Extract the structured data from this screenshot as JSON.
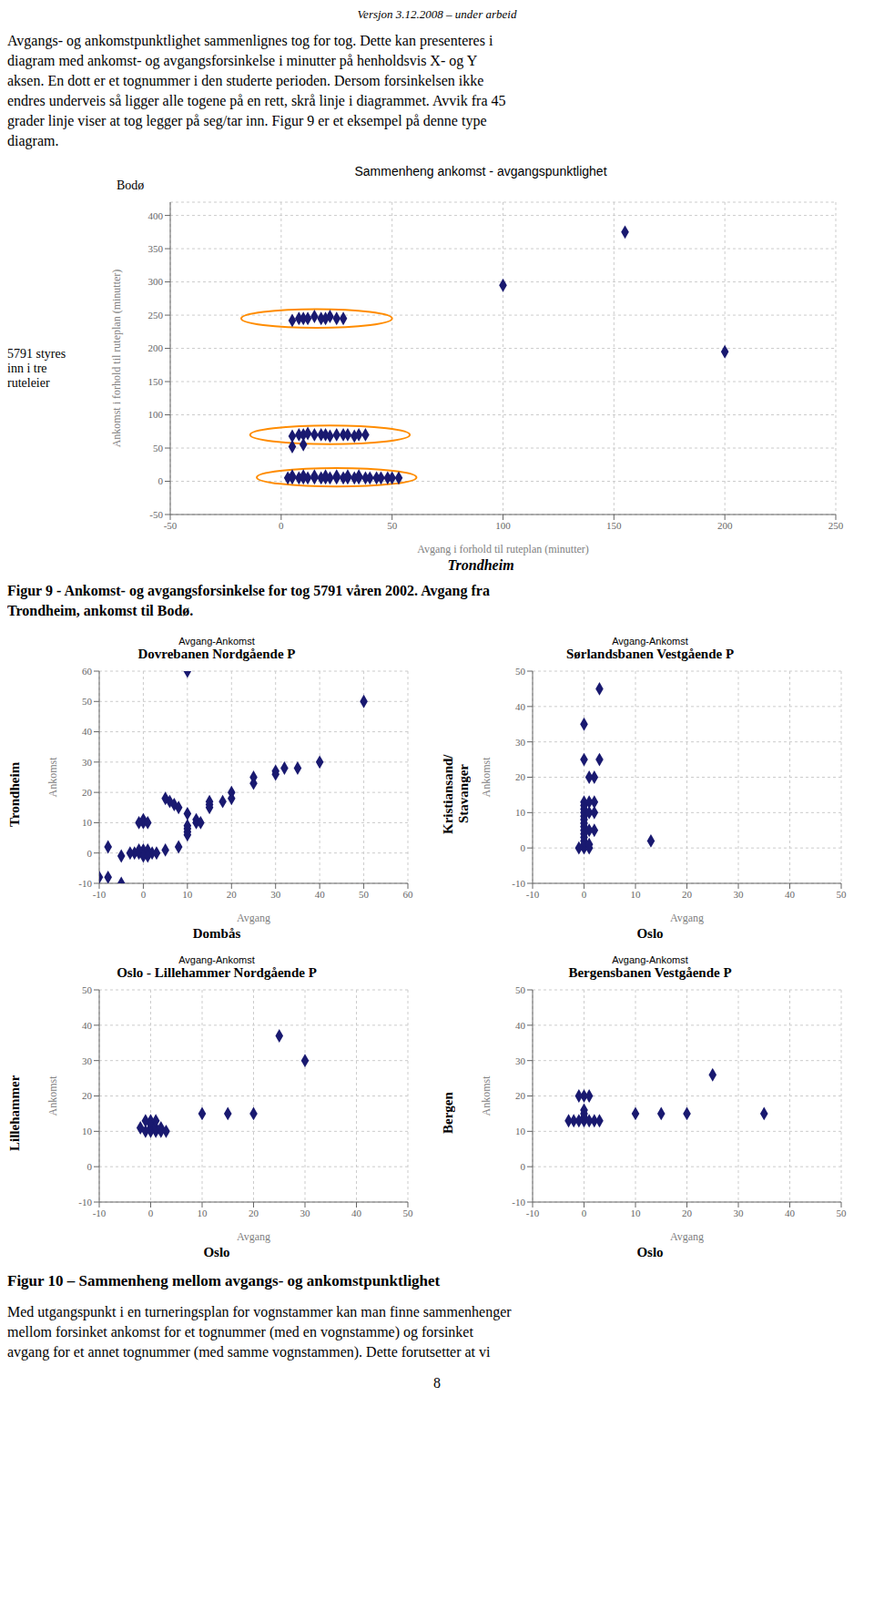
{
  "page": {
    "header": "Versjon 3.12.2008 – under arbeid",
    "body_text_1": [
      "Avgangs- og ankomstpunktlighet sammenlignes tog for tog. Dette kan presenteres i",
      "diagram med ankomst- og avgangsforsinkelse i minutter på henholdsvis X- og Y",
      "aksen. En dott er et tognummer i den studerte perioden. Dersom forsinkelsen ikke",
      "endres underveis så ligger alle togene på en rett, skrå linje i diagrammet. Avvik fra 45",
      "grader linje viser at tog legger på seg/tar inn. Figur 9 er et eksempel på denne type",
      "diagram."
    ],
    "caption_figure_9": "Figur 9 - Ankomst- og avgangsforsinkelse for tog 5791 våren 2002. Avgang fra\nTrondheim, ankomst til Bodø.",
    "caption_figure_10": "Figur 10 – Sammenheng mellom avgangs- og ankomstpunktlighet",
    "body_text_2": [
      "Med utgangspunkt i en turneringsplan for vognstammer kan man finne sammenhenger",
      "mellom forsinket ankomst for et tognummer (med en vognstamme) og forsinket",
      "avgang for et annet tognummer (med samme vognstammen). Dette forutsetter at vi"
    ],
    "page_number": "8"
  },
  "chart_data": [
    {
      "type": "scatter",
      "title": "Sammenheng ankomst - avgangspunktlighet",
      "xlabel": "Avgang i forhold til ruteplan (minutter)",
      "ylabel": "Ankomst i forhold til ruteplan (minutter)",
      "xlabel_city": "Trondheim",
      "ylabel_city": "Bodø",
      "annotations": [
        "5791 styres\ninn i tre\nruteleier"
      ],
      "x": [
        3,
        5,
        8,
        10,
        12,
        15,
        18,
        20,
        22,
        25,
        28,
        30,
        33,
        35,
        38,
        40,
        43,
        45,
        48,
        50,
        53,
        5,
        10,
        15,
        20,
        25,
        30,
        35,
        5,
        8,
        10,
        12,
        15,
        18,
        20,
        22,
        25,
        28,
        30,
        33,
        35,
        38,
        5,
        8,
        10,
        12,
        15,
        18,
        20,
        22,
        25,
        28,
        5,
        10,
        155,
        200,
        100
      ],
      "values": [
        5,
        5,
        5,
        5,
        5,
        5,
        5,
        5,
        5,
        5,
        5,
        5,
        5,
        5,
        5,
        5,
        5,
        5,
        5,
        5,
        5,
        8,
        8,
        8,
        8,
        8,
        8,
        8,
        68,
        70,
        70,
        72,
        70,
        70,
        70,
        68,
        70,
        70,
        70,
        68,
        70,
        70,
        242,
        245,
        245,
        245,
        248,
        245,
        245,
        248,
        245,
        245,
        52,
        55,
        375,
        195,
        295
      ],
      "color": "#191970",
      "marker": "diamond",
      "ellipses": [
        {
          "center": [
            25,
            6
          ],
          "width": 72,
          "height": 28,
          "color": "#FF8C00"
        },
        {
          "center": [
            22,
            70
          ],
          "width": 72,
          "height": 28,
          "color": "#FF8C00"
        },
        {
          "center": [
            16,
            245
          ],
          "width": 68,
          "height": 28,
          "color": "#FF8C00"
        }
      ],
      "xlim": [
        -50,
        250
      ],
      "ylim": [
        -50,
        420
      ],
      "xticks": [
        -50,
        0,
        50,
        100,
        150,
        200,
        250
      ],
      "yticks": [
        -50,
        0,
        50,
        100,
        150,
        200,
        250,
        300,
        350,
        400
      ],
      "grid": true
    },
    {
      "type": "scatter",
      "subtitle": "Avgang-Ankomst",
      "title": "Dovrebanen Nordgående P",
      "xlabel": "Avgang",
      "ylabel": "Ankomst",
      "xlabel_city": "Dombås",
      "ylabel_city": "Trondheim",
      "x": [
        0,
        1,
        -1,
        2,
        -2,
        3,
        -3,
        0,
        1,
        -1,
        0,
        1,
        5,
        -5,
        8,
        -8,
        10,
        10,
        10,
        10,
        12,
        12,
        13,
        15,
        15,
        20,
        20,
        25,
        25,
        30,
        30,
        32,
        35,
        40,
        50,
        10,
        5,
        6,
        7,
        8,
        10,
        15,
        18,
        0,
        0,
        1,
        -1,
        -8,
        -5,
        -10
      ],
      "values": [
        0,
        0,
        0,
        0,
        0,
        0,
        0,
        1,
        1,
        1,
        -1,
        -1,
        1,
        -1,
        2,
        2,
        7,
        8,
        9,
        6,
        10,
        11,
        10,
        16,
        17,
        18,
        20,
        23,
        25,
        27,
        26,
        28,
        28,
        30,
        50,
        60,
        18,
        17,
        16,
        15,
        13,
        15,
        17,
        10,
        11,
        10,
        10,
        -8,
        -10,
        -8
      ],
      "color": "#191970",
      "marker": "diamond",
      "xlim": [
        -10,
        60
      ],
      "ylim": [
        -10,
        60
      ],
      "xticks": [
        -10,
        0,
        10,
        20,
        30,
        40,
        50,
        60
      ],
      "yticks": [
        -10,
        0,
        10,
        20,
        30,
        40,
        50,
        60
      ],
      "grid": true
    },
    {
      "type": "scatter",
      "subtitle": "Avgang-Ankomst",
      "title": "Sørlandsbanen Vestgående P",
      "xlabel": "Avgang",
      "ylabel": "Ankomst",
      "xlabel_city": "Oslo",
      "ylabel_city": "Kristiansand/\nStavanger",
      "x": [
        0,
        0,
        0,
        0,
        0,
        0,
        0,
        0,
        0,
        0,
        0,
        0,
        0,
        0,
        1,
        1,
        -1,
        1,
        2,
        1,
        2,
        1,
        2,
        2,
        1,
        13,
        0,
        3,
        0,
        3
      ],
      "values": [
        0,
        1,
        2,
        3,
        4,
        5,
        6,
        7,
        8,
        9,
        10,
        11,
        12,
        13,
        0,
        1,
        0,
        5,
        5,
        10,
        10,
        13,
        13,
        20,
        20,
        2,
        25,
        25,
        35,
        45
      ],
      "color": "#191970",
      "marker": "diamond",
      "xlim": [
        -10,
        50
      ],
      "ylim": [
        -10,
        50
      ],
      "xticks": [
        -10,
        0,
        10,
        20,
        30,
        40,
        50
      ],
      "yticks": [
        -10,
        0,
        10,
        20,
        30,
        40,
        50
      ],
      "grid": true
    },
    {
      "type": "scatter",
      "subtitle": "Avgang-Ankomst",
      "title": "Oslo - Lillehammer Nordgående P",
      "xlabel": "Avgang",
      "ylabel": "Ankomst",
      "xlabel_city": "Oslo",
      "ylabel_city": "Lillehammer",
      "x": [
        0,
        0,
        1,
        -1,
        2,
        0,
        1,
        0,
        1,
        -1,
        2,
        -2,
        3,
        10,
        15,
        20,
        25,
        30
      ],
      "values": [
        10,
        11,
        10,
        10,
        10,
        12,
        11,
        13,
        13,
        13,
        11,
        11,
        10,
        15,
        15,
        15,
        37,
        30
      ],
      "color": "#191970",
      "marker": "diamond",
      "xlim": [
        -10,
        50
      ],
      "ylim": [
        -10,
        50
      ],
      "xticks": [
        -10,
        0,
        10,
        20,
        30,
        40,
        50
      ],
      "yticks": [
        -10,
        0,
        10,
        20,
        30,
        40,
        50
      ],
      "grid": true
    },
    {
      "type": "scatter",
      "subtitle": "Avgang-Ankomst",
      "title": "Bergensbanen Vestgående P",
      "xlabel": "Avgang",
      "ylabel": "Ankomst",
      "xlabel_city": "Oslo",
      "ylabel_city": "Bergen",
      "x": [
        0,
        0,
        0,
        0,
        1,
        -1,
        2,
        -2,
        3,
        -3,
        10,
        15,
        20,
        25,
        35,
        0,
        1,
        -1
      ],
      "values": [
        13,
        14,
        15,
        16,
        13,
        13,
        13,
        13,
        13,
        13,
        15,
        15,
        15,
        26,
        15,
        20,
        20,
        20
      ],
      "color": "#191970",
      "marker": "diamond",
      "xlim": [
        -10,
        50
      ],
      "ylim": [
        -10,
        50
      ],
      "xticks": [
        -10,
        0,
        10,
        20,
        30,
        40,
        50
      ],
      "yticks": [
        -10,
        0,
        10,
        20,
        30,
        40,
        50
      ],
      "grid": true
    }
  ]
}
